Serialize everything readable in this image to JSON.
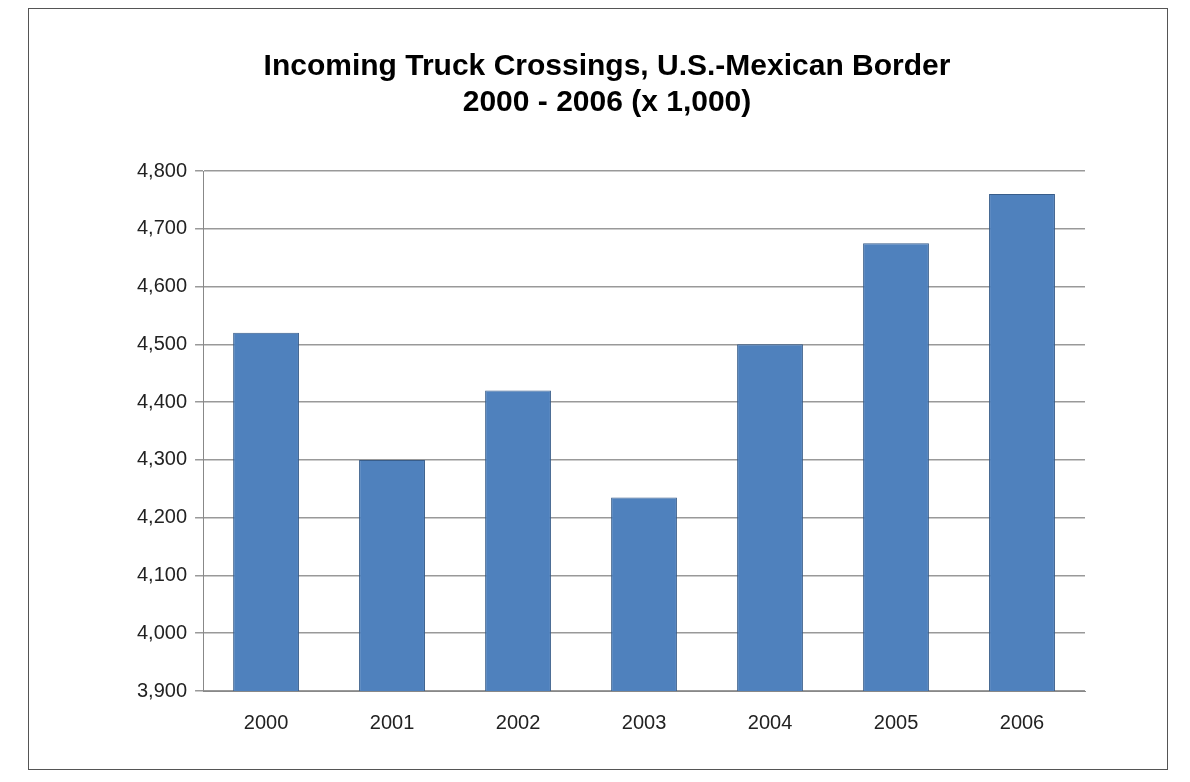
{
  "chart_data": {
    "type": "bar",
    "title": [
      "Incoming Truck Crossings, U.S.-Mexican Border",
      "2000 - 2006 (x 1,000)"
    ],
    "categories": [
      "2000",
      "2001",
      "2002",
      "2003",
      "2004",
      "2005",
      "2006"
    ],
    "values": [
      4520,
      4300,
      4420,
      4235,
      4500,
      4675,
      4760
    ],
    "color": "#4f81bd",
    "ylim": [
      3900,
      4800
    ],
    "yticks": [
      {
        "value": 3900,
        "label": "3,900"
      },
      {
        "value": 4000,
        "label": "4,000"
      },
      {
        "value": 4100,
        "label": "4,100"
      },
      {
        "value": 4200,
        "label": "4,200"
      },
      {
        "value": 4300,
        "label": "4,300"
      },
      {
        "value": 4400,
        "label": "4,400"
      },
      {
        "value": 4500,
        "label": "4,500"
      },
      {
        "value": 4600,
        "label": "4,600"
      },
      {
        "value": 4700,
        "label": "4,700"
      },
      {
        "value": 4800,
        "label": "4,800"
      }
    ],
    "grid": "y",
    "legend": false
  }
}
